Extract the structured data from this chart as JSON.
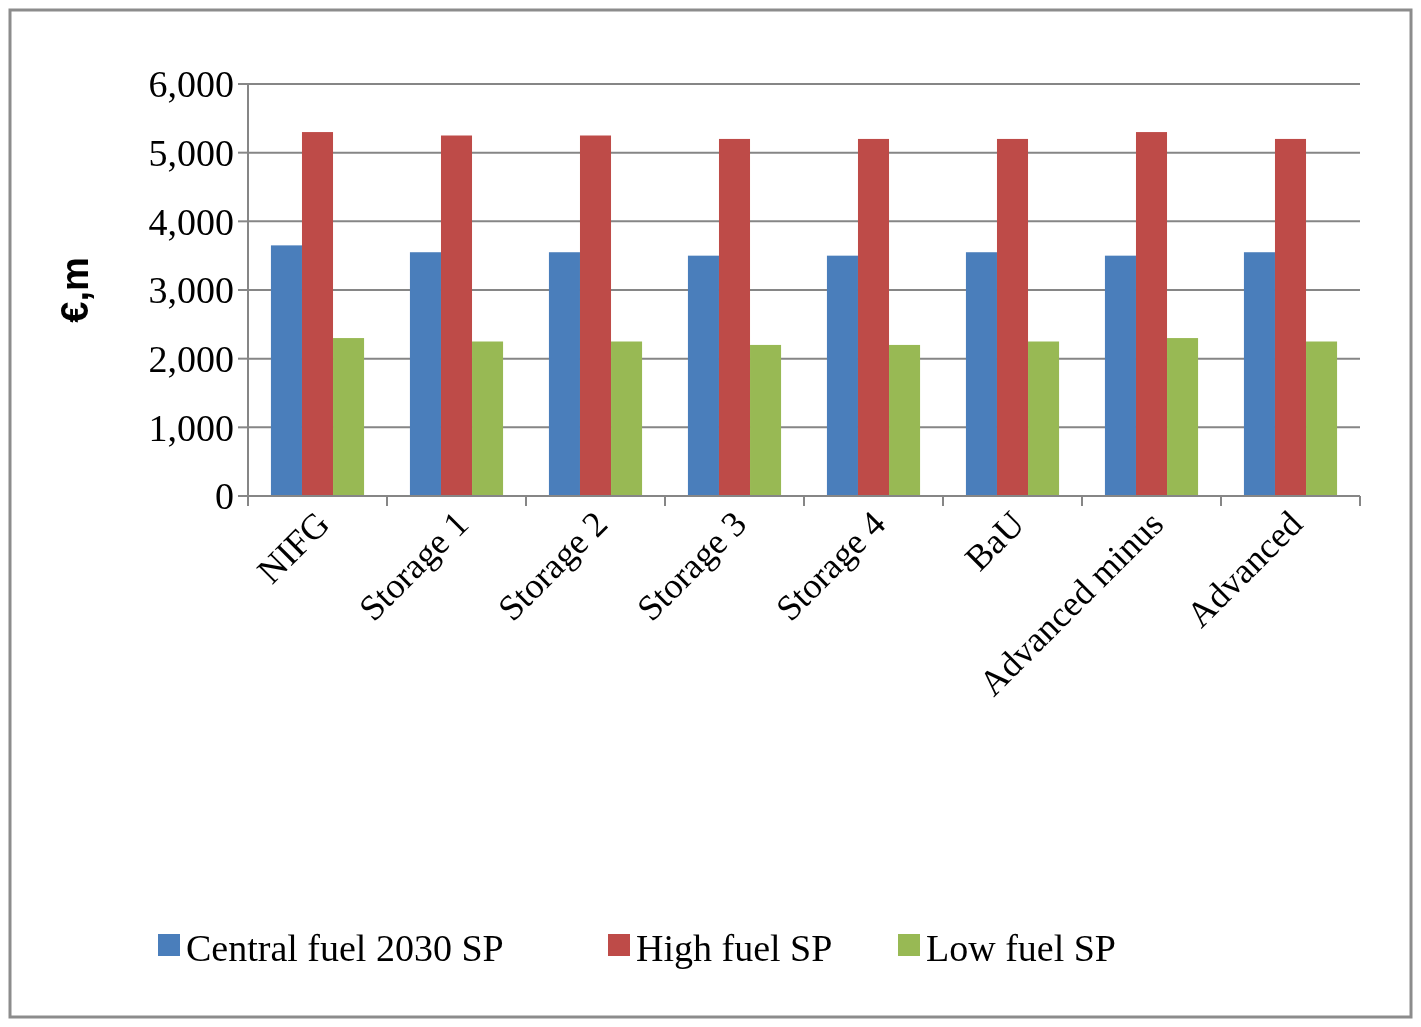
{
  "chart_data": {
    "type": "bar",
    "ylabel": "€,m",
    "categories": [
      "NIFG",
      "Storage 1",
      "Storage 2",
      "Storage 3",
      "Storage 4",
      "BaU",
      "Advanced minus",
      "Advanced"
    ],
    "series": [
      {
        "name": "Central fuel 2030 SP",
        "color": "#4a7ebb",
        "values": [
          3650,
          3550,
          3550,
          3500,
          3500,
          3550,
          3500,
          3550
        ]
      },
      {
        "name": "High fuel SP",
        "color": "#be4b48",
        "values": [
          5300,
          5250,
          5250,
          5200,
          5200,
          5200,
          5300,
          5200
        ]
      },
      {
        "name": "Low fuel SP",
        "color": "#98b954",
        "values": [
          2300,
          2250,
          2250,
          2200,
          2200,
          2250,
          2300,
          2250
        ]
      }
    ],
    "ylim": [
      0,
      6000
    ],
    "yticks": [
      {
        "value": 0,
        "label": "0"
      },
      {
        "value": 1000,
        "label": "1,000"
      },
      {
        "value": 2000,
        "label": "2,000"
      },
      {
        "value": 3000,
        "label": "3,000"
      },
      {
        "value": 4000,
        "label": "4,000"
      },
      {
        "value": 5000,
        "label": "5,000"
      },
      {
        "value": 6000,
        "label": "6,000"
      }
    ],
    "grid": "y",
    "legend": "bottom"
  }
}
